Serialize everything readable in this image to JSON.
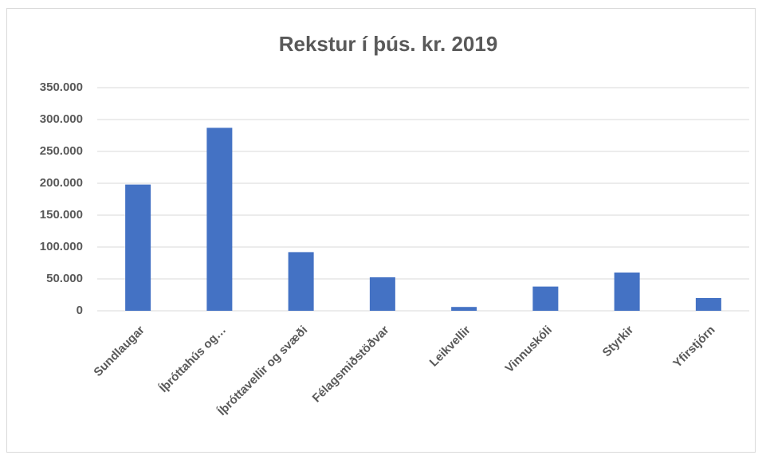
{
  "chart_data": {
    "type": "bar",
    "title": "Rekstur í þús. kr. 2019",
    "categories": [
      "Sundlaugar",
      "Íþróttahús og…",
      "Íþróttavellir og svæði",
      "Félagsmiðstöðvar",
      "Leikvellir",
      "Vinnuskóli",
      "Styrkir",
      "Yfirstjórn"
    ],
    "values": [
      198000,
      287000,
      92000,
      52500,
      6000,
      38000,
      60000,
      20000
    ],
    "color": "#4472c4",
    "ylim": [
      0,
      350000
    ],
    "yticks": [
      0,
      {
        "value": 50000,
        "label": "50.000"
      },
      {
        "value": 100000,
        "label": "100.000"
      },
      {
        "value": 150000,
        "label": "150.000"
      },
      {
        "value": 200000,
        "label": "200.000"
      },
      {
        "value": 250000,
        "label": "250.000"
      },
      {
        "value": 300000,
        "label": "300.000"
      },
      {
        "value": 350000,
        "label": "350.000"
      }
    ],
    "grid": true
  }
}
